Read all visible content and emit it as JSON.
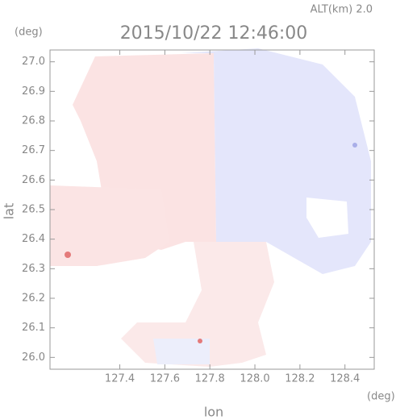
{
  "chart_data": {
    "type": "radar-map",
    "header": "ALT(km) 2.0",
    "title": "2015/10/22 12:46:00",
    "y_unit": "(deg)",
    "x_unit": "(deg)",
    "ylabel": "lat",
    "xlabel": "lon",
    "xlim": [
      127.09,
      128.53
    ],
    "ylim": [
      25.96,
      27.04
    ],
    "xticks": [
      127.4,
      127.6,
      127.8,
      {
        "value": 128,
        "label": "128.0"
      },
      128.2,
      128.4
    ],
    "yticks": [
      {
        "value": 26,
        "label": "26.0"
      },
      26.1,
      26.2,
      26.3,
      26.4,
      26.5,
      26.6,
      26.7,
      26.8,
      26.9,
      {
        "value": 27,
        "label": "27.0"
      }
    ]
  }
}
